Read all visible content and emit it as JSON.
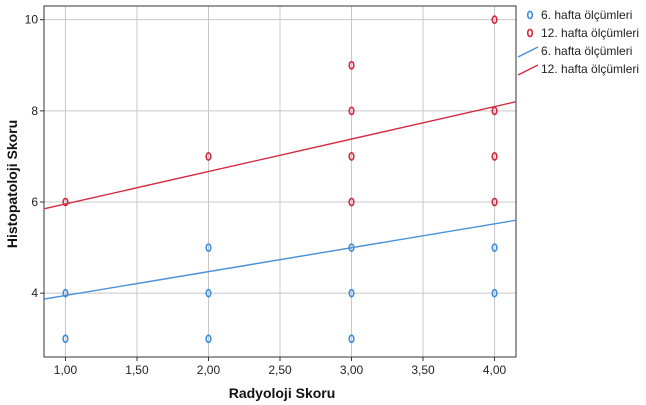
{
  "chart_data": {
    "type": "scatter",
    "title": "",
    "xlabel": "Radyoloji Skoru",
    "ylabel": "Histopatoloji Skoru",
    "xlim": [
      0.85,
      4.15
    ],
    "ylim": [
      2.6,
      10.3
    ],
    "x_ticks": [
      1,
      1.5,
      2,
      2.5,
      3,
      3.5,
      4
    ],
    "x_tick_labels": [
      "1,00",
      "1,50",
      "2,00",
      "2,50",
      "3,00",
      "3,50",
      "4,00"
    ],
    "y_ticks": [
      4,
      6,
      8,
      10
    ],
    "y_tick_labels": [
      "4",
      "6",
      "8",
      "10"
    ],
    "grid": true,
    "legend_position": "right-top",
    "series": [
      {
        "name": "6. hafta ölçümleri",
        "kind": "points",
        "color": "#3d8fe0",
        "points": [
          [
            1,
            3
          ],
          [
            1,
            4
          ],
          [
            2,
            3
          ],
          [
            2,
            4
          ],
          [
            2,
            5
          ],
          [
            3,
            3
          ],
          [
            3,
            4
          ],
          [
            3,
            5
          ],
          [
            4,
            4
          ],
          [
            4,
            5
          ]
        ]
      },
      {
        "name": "12. hafta ölçümleri",
        "kind": "points",
        "color": "#d4283c",
        "points": [
          [
            1,
            6
          ],
          [
            2,
            7
          ],
          [
            3,
            6
          ],
          [
            3,
            7
          ],
          [
            3,
            8
          ],
          [
            3,
            9
          ],
          [
            4,
            6
          ],
          [
            4,
            7
          ],
          [
            4,
            8
          ],
          [
            4,
            10
          ]
        ]
      }
    ],
    "fit_lines": [
      {
        "name": "6. hafta ölçümleri",
        "color": "#4a90d9",
        "start": [
          0.85,
          3.87
        ],
        "end": [
          4.15,
          5.6
        ]
      },
      {
        "name": "12. hafta ölçümleri",
        "color": "#d42a40",
        "start": [
          0.85,
          5.85
        ],
        "end": [
          4.15,
          8.2
        ]
      }
    ]
  }
}
